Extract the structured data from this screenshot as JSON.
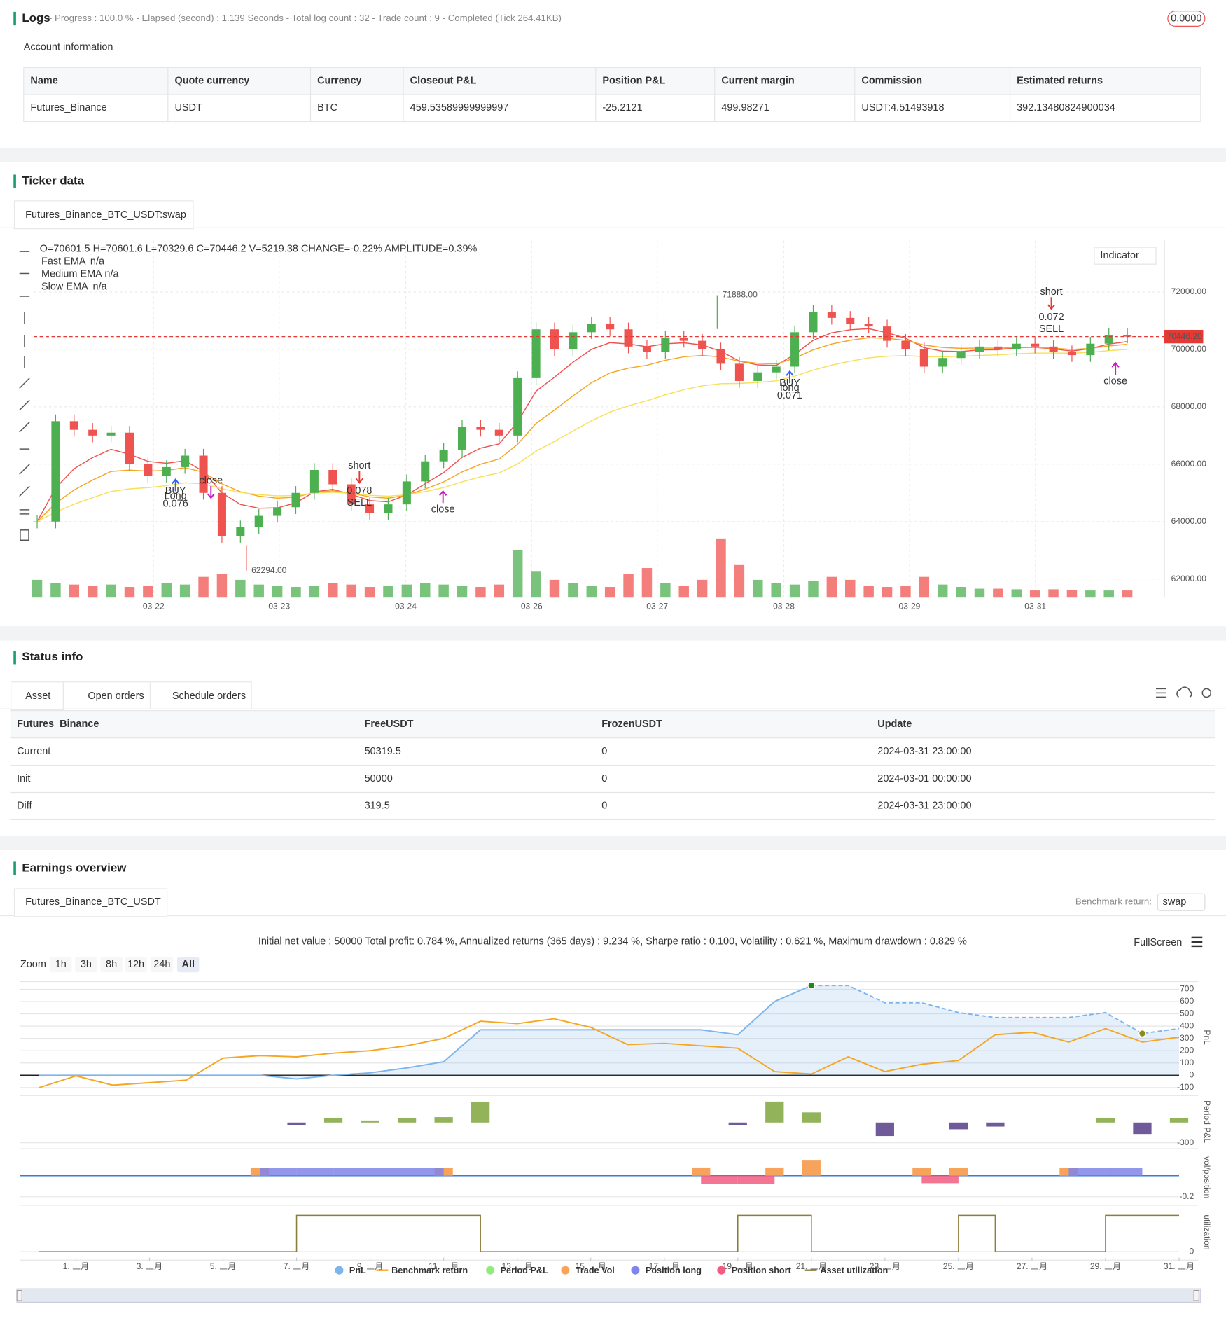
{
  "logs": {
    "title": "Logs",
    "summary": "- Progress : 100.0 % - Elapsed (second) : 1.139  Seconds - Total log count : 32 - Trade count : 9 - Completed (Tick 264.41KB)",
    "badge": "0.0000"
  },
  "account": {
    "title": "Account information",
    "headers": [
      "Name",
      "Quote currency",
      "Currency",
      "Closeout P&L",
      "Position P&L",
      "Current margin",
      "Commission",
      "Estimated returns"
    ],
    "rows": [
      [
        "Futures_Binance",
        "USDT",
        "BTC",
        "459.53589999999997",
        "-25.2121",
        "499.98271",
        "USDT:4.51493918",
        "392.13480824900034"
      ]
    ]
  },
  "ticker": {
    "title": "Ticker data",
    "tab": "Futures_Binance_BTC_USDT:swap",
    "chart_data": {
      "type": "candlestick",
      "ohlc_label": "O=70601.5 H=70601.6 L=70329.6 C=70446.2 V=5219.38 CHANGE=-0.22% AMPLITUDE=0.39%",
      "legend": [
        {
          "name": "Fast EMA",
          "value": "n/a",
          "color": "#f39c12",
          "line_color": "#ef5350"
        },
        {
          "name": "Medium EMA",
          "value": "n/a",
          "color": "#9b59b6",
          "line_color": "#f5a623"
        },
        {
          "name": "Slow EMA",
          "value": "n/a",
          "color": "#3d8fd6",
          "line_color": "#f7e15a"
        }
      ],
      "indicator_button": "Indicator",
      "closes": [
        64000,
        67500,
        67200,
        67000,
        67100,
        66000,
        65600,
        65900,
        66300,
        65000,
        63500,
        63800,
        64200,
        64500,
        65000,
        65800,
        65300,
        64600,
        64300,
        64600,
        65400,
        66100,
        66500,
        67300,
        67200,
        67000,
        69000,
        70700,
        70000,
        70600,
        70900,
        70700,
        70100,
        69900,
        70400,
        70300,
        70000,
        69500,
        68900,
        69200,
        69400,
        70600,
        71300,
        71100,
        70900,
        70800,
        70300,
        70000,
        69400,
        69700,
        69900,
        70100,
        70000,
        70200,
        70100,
        69900,
        69800,
        70200,
        70500,
        70446.2
      ],
      "volumes": [
        30,
        25,
        22,
        20,
        22,
        18,
        20,
        25,
        22,
        35,
        40,
        30,
        22,
        20,
        18,
        20,
        25,
        22,
        18,
        20,
        22,
        25,
        22,
        20,
        18,
        22,
        80,
        45,
        30,
        25,
        20,
        18,
        40,
        50,
        25,
        20,
        30,
        100,
        55,
        30,
        25,
        22,
        28,
        35,
        30,
        20,
        18,
        20,
        35,
        22,
        18,
        15,
        15,
        14,
        12,
        14,
        13,
        12,
        12,
        12
      ],
      "volume_ylim": [
        0,
        100
      ],
      "up_color": "#4caf50",
      "down_color": "#ef5350",
      "ylim": [
        61353,
        73794
      ],
      "yticks": [
        {
          "value": 72000,
          "label": "72000.00"
        },
        {
          "value": 70000,
          "label": "70000.00"
        },
        {
          "value": 68000,
          "label": "68000.00"
        },
        {
          "value": 66000,
          "label": "66000.00"
        },
        {
          "value": 64000,
          "label": "64000.00"
        },
        {
          "value": 62000,
          "label": "62000.00"
        }
      ],
      "xticks": [
        {
          "value": 6.3,
          "label": "03-22"
        },
        {
          "value": 13.1,
          "label": "03-23"
        },
        {
          "value": 19.95,
          "label": "03-24"
        },
        {
          "value": 26.76,
          "label": "03-26"
        },
        {
          "value": 33.56,
          "label": "03-27"
        },
        {
          "value": 40.41,
          "label": "03-28"
        },
        {
          "value": 47.21,
          "label": "03-29"
        },
        {
          "value": 54.02,
          "label": "03-31"
        }
      ],
      "current_price": {
        "value": 70446.2,
        "label": "70446.20"
      },
      "high": {
        "value": 71888,
        "label": "71888.00"
      },
      "low": {
        "value": 62294,
        "label": "62294.00"
      },
      "markers": [
        {
          "signal": "BUY",
          "side": "Long",
          "qty": 0.076
        },
        {
          "side": "close"
        },
        {
          "side": "short",
          "qty": 0.078,
          "signal": "SELL"
        },
        {
          "side": "close"
        },
        {
          "side": "long",
          "signal": "BUY",
          "qty": 0.071
        },
        {
          "side": "short",
          "qty": 0.072,
          "signal": "SELL"
        },
        {
          "side": "close"
        }
      ]
    }
  },
  "status": {
    "title": "Status info",
    "tabs": [
      "Asset",
      "Open orders",
      "Schedule orders"
    ],
    "headers": [
      "Futures_Binance",
      "FreeUSDT",
      "FrozenUSDT",
      "Update"
    ],
    "rows": [
      [
        "Current",
        "50319.5",
        "0",
        "2024-03-31 23:00:00"
      ],
      [
        "Init",
        "50000",
        "0",
        "2024-03-01 00:00:00"
      ],
      [
        "Diff",
        "319.5",
        "0",
        "2024-03-31 23:00:00"
      ]
    ]
  },
  "earnings": {
    "title": "Earnings overview",
    "tab": "Futures_Binance_BTC_USDT",
    "benchmark_label": "Benchmark return:",
    "benchmark_value": "swap",
    "summary": "Initial net value : 50000 Total profit: 0.784 %, Annualized returns (365 days) : 9.234 %, Sharpe ratio : 0.100, Volatility : 0.621 %, Maximum drawdown : 0.829 %",
    "fullscreen": "FullScreen",
    "zoom": {
      "label": "Zoom",
      "options": [
        "1h",
        "3h",
        "8h",
        "12h",
        "24h",
        "All"
      ]
    },
    "chart_data": {
      "type": "combo",
      "x": [
        0,
        1,
        2,
        3,
        4,
        5,
        6,
        7,
        8,
        9,
        10,
        11,
        12,
        13,
        14,
        15,
        16,
        17,
        18,
        19,
        20,
        21,
        22,
        23,
        24,
        25,
        26,
        27,
        28,
        29,
        30,
        31
      ],
      "xlim": [
        0,
        31
      ],
      "xticks": [
        {
          "value": 1,
          "label": "1. 三月"
        },
        {
          "value": 3,
          "label": "3. 三月"
        },
        {
          "value": 5,
          "label": "5. 三月"
        },
        {
          "value": 7,
          "label": "7. 三月"
        },
        {
          "value": 9,
          "label": "9. 三月"
        },
        {
          "value": 11,
          "label": "11. 三月"
        },
        {
          "value": 13,
          "label": "13. 三月"
        },
        {
          "value": 15,
          "label": "15. 三月"
        },
        {
          "value": 17,
          "label": "17. 三月"
        },
        {
          "value": 19,
          "label": "19. 三月"
        },
        {
          "value": 21,
          "label": "21. 三月"
        },
        {
          "value": 23,
          "label": "23. 三月"
        },
        {
          "value": 25,
          "label": "25. 三月"
        },
        {
          "value": 27,
          "label": "27. 三月"
        },
        {
          "value": 29,
          "label": "29. 三月"
        },
        {
          "value": 31,
          "label": "31. 三月"
        }
      ],
      "panels": [
        {
          "axis_label": "PnL",
          "ylim": [
            -144,
            762
          ],
          "yticks": [
            700,
            600,
            500,
            400,
            300,
            200,
            100,
            0,
            -100
          ],
          "series": [
            {
              "name": "PnL",
              "type": "area",
              "color": "#7cb5ec",
              "values": [
                0,
                0,
                0,
                0,
                0,
                0,
                0,
                -30,
                0,
                20,
                60,
                110,
                370,
                370,
                370,
                370,
                370,
                370,
                370,
                330,
                600,
                730,
                730,
                590,
                590,
                510,
                470,
                470,
                470,
                510,
                340,
                380
              ]
            },
            {
              "name": "Benchmark return",
              "type": "line",
              "color": "#f5a623",
              "values": [
                -100,
                -5,
                -80,
                -60,
                -40,
                140,
                160,
                150,
                180,
                200,
                240,
                300,
                440,
                420,
                460,
                390,
                250,
                260,
                240,
                220,
                30,
                10,
                150,
                30,
                90,
                120,
                330,
                350,
                270,
                380,
                270,
                310
              ]
            }
          ]
        },
        {
          "axis_label": "Period P&L",
          "ylim": [
            -350,
            375
          ],
          "yticks": [
            -300
          ],
          "series": [
            {
              "name": "Period P&L",
              "type": "bar",
              "color": "#90ed7d",
              "bar_color": "#93b35a",
              "negative_color": "#6f5a9a",
              "values": [
                null,
                null,
                null,
                null,
                null,
                null,
                null,
                -40,
                70,
                30,
                60,
                80,
                300,
                null,
                null,
                null,
                null,
                null,
                null,
                -40,
                310,
                150,
                null,
                -200,
                null,
                -100,
                -60,
                null,
                null,
                70,
                -170,
                60
              ]
            }
          ]
        },
        {
          "axis_label": "vol/position",
          "ylim": [
            -0.256,
            0.224
          ],
          "yticks": [
            -0.2
          ],
          "series": [
            {
              "name": "Trade Vol",
              "type": "bar",
              "color": "#f7a35c",
              "values": [
                null,
                null,
                null,
                null,
                null,
                null,
                0.076,
                null,
                null,
                null,
                null,
                0.076,
                null,
                null,
                null,
                null,
                null,
                null,
                0.078,
                null,
                0.078,
                0.15,
                null,
                null,
                0.071,
                0.071,
                null,
                null,
                0.072,
                null,
                null,
                null
              ]
            },
            {
              "name": "Position long",
              "type": "span",
              "color": "#8085e9",
              "values": [
                null,
                null,
                null,
                null,
                null,
                null,
                0.076,
                0.076,
                0.076,
                0.076,
                0.076,
                null,
                null,
                null,
                null,
                null,
                null,
                null,
                null,
                null,
                null,
                null,
                null,
                null,
                null,
                null,
                null,
                null,
                0.072,
                0.072,
                null,
                null
              ]
            },
            {
              "name": "Position short",
              "type": "span",
              "color": "#f15c80",
              "values": [
                null,
                null,
                null,
                null,
                null,
                null,
                null,
                null,
                null,
                null,
                null,
                null,
                null,
                null,
                null,
                null,
                null,
                null,
                -0.078,
                -0.078,
                null,
                null,
                null,
                null,
                -0.071,
                null,
                null,
                null,
                null,
                null,
                null,
                null
              ]
            }
          ]
        },
        {
          "axis_label": "utilization",
          "ylim": [
            -0.163,
            1.233
          ],
          "yticks": [
            0
          ],
          "series": [
            {
              "name": "Asset utilization",
              "type": "step",
              "color": "#8b7d3a",
              "values": [
                0,
                0,
                0,
                0,
                0,
                0,
                0,
                1,
                1,
                1,
                1,
                1,
                0,
                0,
                0,
                0,
                0,
                0,
                0,
                1,
                1,
                0,
                0,
                0,
                0,
                1,
                0,
                0,
                0,
                1,
                1,
                1
              ]
            }
          ]
        }
      ]
    }
  }
}
